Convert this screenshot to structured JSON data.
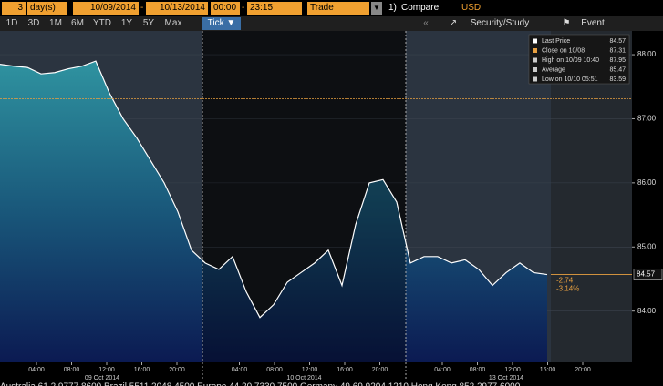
{
  "toolbar": {
    "period": "3",
    "unit": "day(s)",
    "start_date": "10/09/2014",
    "end_date": "10/13/2014",
    "start_time": "00:00",
    "end_time": "23:15",
    "event": "Trade",
    "compare_number": "1)",
    "compare": "Compare",
    "currency": "USD"
  },
  "range_buttons": [
    "1D",
    "3D",
    "1M",
    "6M",
    "YTD",
    "1Y",
    "5Y",
    "Max"
  ],
  "interval": "Tick",
  "actions": [
    "Security/Study",
    "Event"
  ],
  "legend": [
    {
      "label": "Last Price",
      "value": 84.57
    },
    {
      "label": "Close on 10/08",
      "value": 87.31
    },
    {
      "label": "High on 10/09 10:40",
      "value": 87.95
    },
    {
      "label": "Average",
      "value": 85.47
    },
    {
      "label": "Low on 10/10 05:51",
      "value": 83.59
    }
  ],
  "chart_data": {
    "type": "line",
    "series": [
      {
        "name": "Last Price",
        "color": "#ffffff",
        "values": [
          87.85,
          87.82,
          87.8,
          87.7,
          87.72,
          87.78,
          87.82,
          87.9,
          87.4,
          87.0,
          86.7,
          86.35,
          86.0,
          85.55,
          84.95,
          84.75,
          84.65,
          84.85,
          84.3,
          83.9,
          84.1,
          84.45,
          84.6,
          84.75,
          84.95,
          84.4,
          85.35,
          86.0,
          86.05,
          85.7,
          84.75,
          84.85,
          84.85,
          84.75,
          84.8,
          84.65,
          84.4,
          84.6,
          84.75,
          84.6,
          84.57
        ]
      }
    ],
    "ylim": [
      83.2,
      88.37
    ],
    "yticks": [
      {
        "value": 84,
        "label": "84.00"
      },
      {
        "value": 85,
        "label": "85.00"
      },
      {
        "value": 86,
        "label": "86.00"
      },
      {
        "value": 87,
        "label": "87.00"
      },
      {
        "value": 88,
        "label": "88.00"
      }
    ],
    "time_labels": [
      "04:00",
      "08:00",
      "12:00",
      "16:00",
      "20:00",
      "04:00",
      "08:00",
      "12:00",
      "16:00",
      "20:00",
      "04:00",
      "08:00",
      "12:00",
      "16:00",
      "20:00"
    ],
    "date_labels": [
      "09 Oct 2014",
      "10 Oct 2014",
      "13 Oct 2014"
    ],
    "change": "-2.74",
    "change_pct": "-3.14%"
  },
  "footer": "Australia 61 2 9777 8600 Brazil 5511 2048 4500 Europe 44 20 7330 7500 Germany 49 69 9204 1210 Hong Kong 852 2977 6000"
}
